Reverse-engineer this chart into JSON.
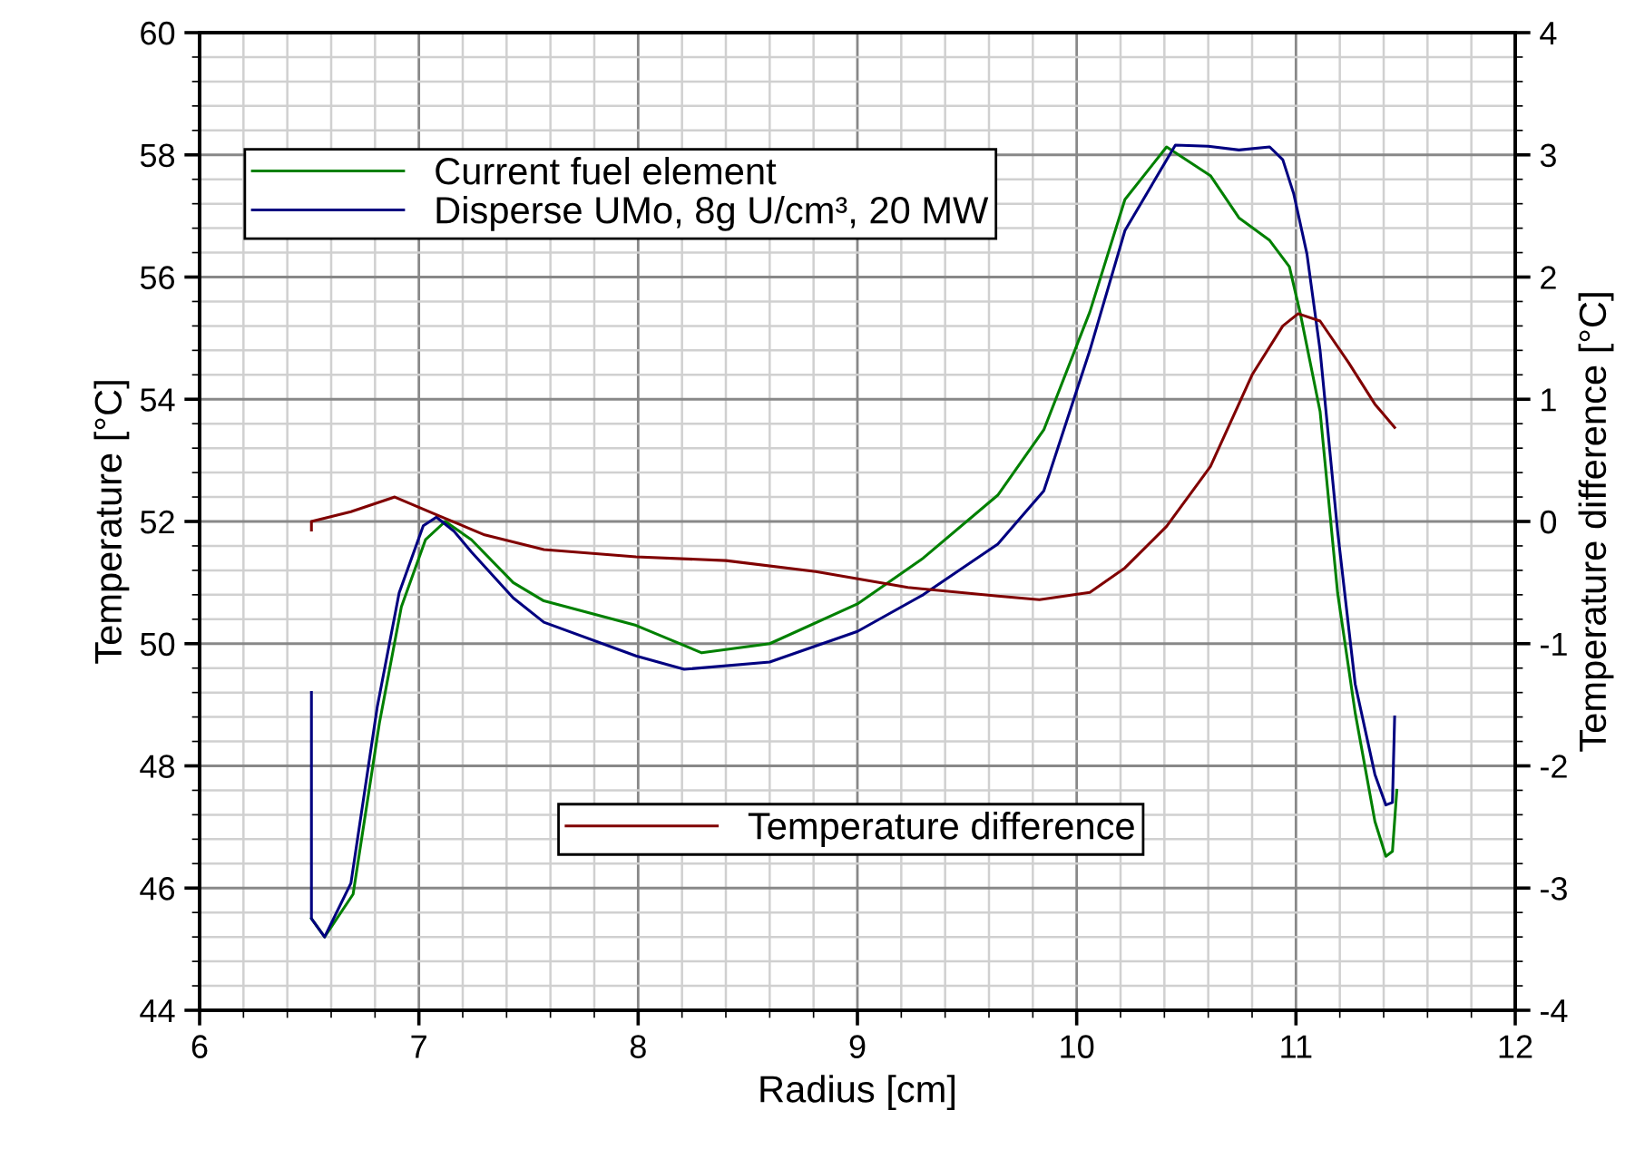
{
  "chart_data": {
    "type": "line",
    "xlabel": "Radius [cm]",
    "ylabel": "Temperature [°C]",
    "y2label": "Temperature difference [°C]",
    "xlim": [
      6,
      12
    ],
    "xticks": [
      6,
      7,
      8,
      9,
      10,
      11,
      12
    ],
    "ylim": [
      44,
      60
    ],
    "yticks": [
      44,
      46,
      48,
      50,
      52,
      54,
      56,
      58,
      60
    ],
    "y2lim": [
      -4,
      4
    ],
    "y2ticks": [
      -4,
      -3,
      -2,
      -1,
      0,
      1,
      2,
      3,
      4
    ],
    "grid": true,
    "legend": "top left",
    "line_style": "solid",
    "marker": "none",
    "series": [
      {
        "name": "Current fuel element",
        "color": "#008000",
        "x": [
          6.51,
          6.57,
          6.7,
          6.82,
          6.92,
          7.03,
          7.12,
          7.24,
          7.43,
          7.57,
          7.99,
          8.29,
          8.6,
          9.0,
          9.3,
          9.64,
          9.85,
          10.06,
          10.22,
          10.41,
          10.61,
          10.74,
          10.88,
          10.97,
          11.02,
          11.11,
          11.19,
          11.27,
          11.36,
          11.41,
          11.44,
          11.46
        ],
        "values": [
          45.5,
          45.2,
          45.9,
          48.7,
          50.6,
          51.7,
          52.0,
          51.7,
          51.0,
          50.7,
          50.3,
          49.85,
          50.0,
          50.65,
          51.4,
          52.43,
          53.5,
          55.43,
          57.27,
          58.13,
          57.66,
          56.97,
          56.6,
          56.17,
          55.4,
          53.8,
          50.83,
          48.87,
          47.09,
          46.52,
          46.6,
          47.6
        ]
      },
      {
        "name": "Disperse UMo, 8g U/cm³, 20 MW",
        "color": "#000080",
        "x": [
          6.51,
          6.51,
          6.57,
          6.69,
          6.81,
          6.91,
          7.02,
          7.08,
          7.16,
          7.24,
          7.43,
          7.57,
          7.99,
          8.21,
          8.6,
          9.0,
          9.3,
          9.64,
          9.85,
          10.06,
          10.22,
          10.45,
          10.6,
          10.74,
          10.88,
          10.94,
          10.99,
          11.05,
          11.11,
          11.19,
          11.27,
          11.36,
          11.41,
          11.44,
          11.45
        ],
        "values": [
          49.2,
          45.5,
          45.2,
          46.08,
          48.96,
          50.83,
          51.93,
          52.07,
          51.84,
          51.5,
          50.75,
          50.35,
          49.8,
          49.58,
          49.7,
          50.2,
          50.8,
          51.63,
          52.5,
          54.8,
          56.76,
          58.16,
          58.14,
          58.08,
          58.13,
          57.92,
          57.36,
          56.38,
          54.8,
          51.84,
          49.34,
          47.86,
          47.36,
          47.4,
          48.8
        ]
      },
      {
        "name": "Temperature difference",
        "color": "#800000",
        "axis": "y2",
        "x": [
          6.51,
          6.51,
          6.69,
          6.89,
          7.1,
          7.3,
          7.57,
          7.99,
          8.4,
          8.81,
          9.23,
          9.64,
          9.83,
          10.06,
          10.22,
          10.41,
          10.61,
          10.8,
          10.94,
          11.01,
          11.11,
          11.24,
          11.36,
          11.45
        ],
        "values": [
          -0.07,
          0.0,
          0.08,
          0.2,
          0.04,
          -0.11,
          -0.23,
          -0.29,
          -0.32,
          -0.41,
          -0.54,
          -0.61,
          -0.64,
          -0.58,
          -0.38,
          -0.04,
          0.45,
          1.2,
          1.6,
          1.7,
          1.64,
          1.3,
          0.96,
          0.77
        ]
      }
    ]
  }
}
